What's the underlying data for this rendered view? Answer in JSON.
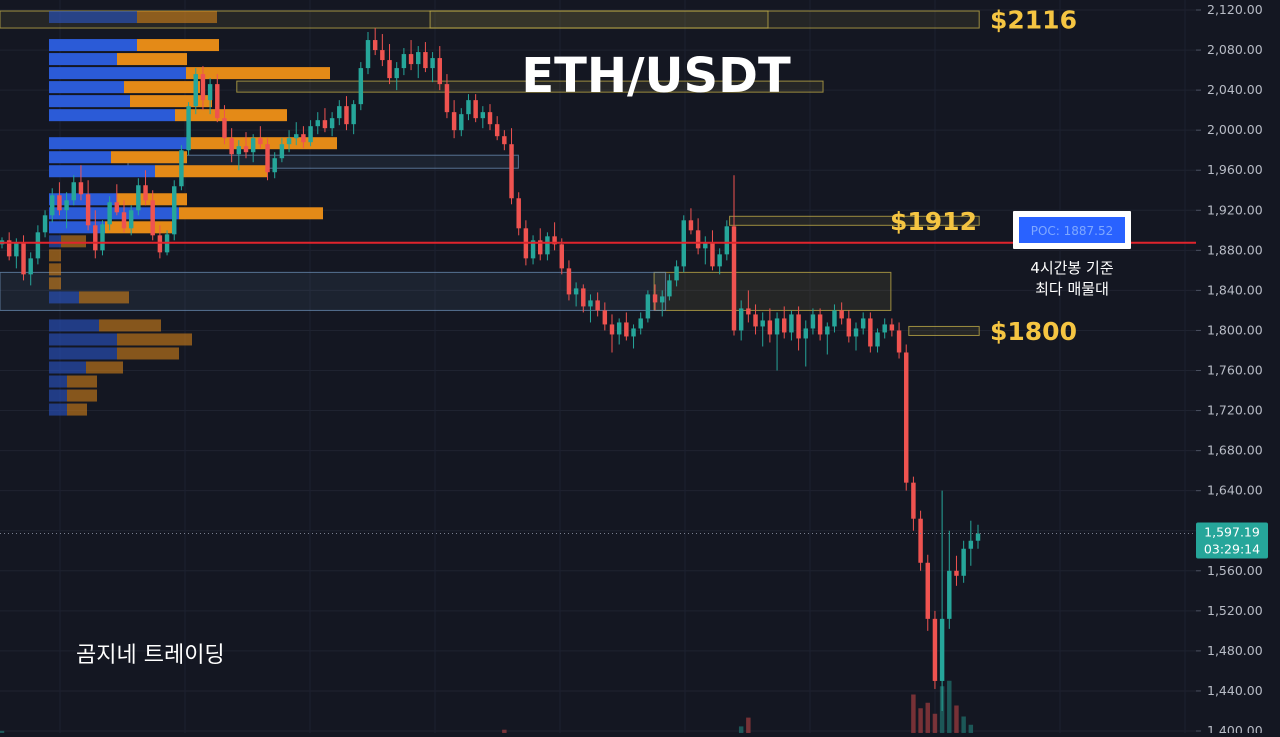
{
  "chart_data": {
    "type": "candlestick",
    "title": "ETH/USDT",
    "watermark": "곰지네 트레이딩",
    "price_axis": {
      "range": [
        1398,
        2130
      ],
      "ticks": [
        "2,120.00",
        "2,080.00",
        "2,040.00",
        "2,000.00",
        "1,960.00",
        "1,920.00",
        "1,880.00",
        "1,840.00",
        "1,800.00",
        "1,760.00",
        "1,720.00",
        "1,680.00",
        "1,640.00",
        "1,600.00",
        "1,560.00",
        "1,520.00",
        "1,480.00",
        "1,440.00",
        "1,400.00"
      ]
    },
    "current_price": {
      "price": "1,597.19",
      "countdown": "03:29:14",
      "value": 1597.19,
      "color": "#26a69a"
    },
    "poc": {
      "value": 1887.52,
      "label": "POC: 1887.52",
      "annotation_line1": "4시간봉 기준",
      "annotation_line2": "최다 매물대",
      "line_color": "#e0242c",
      "badge_color": "#2962ff"
    },
    "levels": [
      {
        "label": "$2116",
        "low": 2102,
        "high": 2119,
        "color": "#f5c542"
      },
      {
        "label": "$1912",
        "low": 1905,
        "high": 1914,
        "color": "#f5c542"
      },
      {
        "label": "$1800",
        "low": 1795,
        "high": 1804,
        "color": "#f5c542"
      }
    ],
    "zones": [
      {
        "low": 2102,
        "high": 2119,
        "x_from_pct": 0.0,
        "x_to_pct": 0.765,
        "color": "#c8b34a"
      },
      {
        "low": 2102,
        "high": 2119,
        "x_from_pct": 0.336,
        "x_to_pct": 0.6,
        "color": "#c8b34a"
      },
      {
        "low": 2038,
        "high": 2049,
        "x_from_pct": 0.185,
        "x_to_pct": 0.643,
        "color": "#c8b34a"
      },
      {
        "low": 1962,
        "high": 1975,
        "x_from_pct": 0.1,
        "x_to_pct": 0.405,
        "color": "#6b8fb5"
      },
      {
        "low": 1905,
        "high": 1914,
        "x_from_pct": 0.57,
        "x_to_pct": 0.765,
        "color": "#c8b34a"
      },
      {
        "low": 1820,
        "high": 1858,
        "x_from_pct": 0.511,
        "x_to_pct": 0.696,
        "color": "#c8b34a"
      },
      {
        "low": 1820,
        "high": 1858,
        "x_from_pct": 0.0,
        "x_to_pct": 0.52,
        "color": "#6b8fb5"
      },
      {
        "low": 1795,
        "high": 1804,
        "x_from_pct": 0.71,
        "x_to_pct": 0.765,
        "color": "#c8b34a"
      }
    ],
    "volume_profile": {
      "bin_size": 14,
      "rows": [
        {
          "top": 2120,
          "buy": 88,
          "sell": 80,
          "dim": true
        },
        {
          "top": 2092,
          "buy": 88,
          "sell": 82
        },
        {
          "top": 2078,
          "buy": 68,
          "sell": 70
        },
        {
          "top": 2064,
          "buy": 137,
          "sell": 144
        },
        {
          "top": 2050,
          "buy": 75,
          "sell": 76
        },
        {
          "top": 2036,
          "buy": 81,
          "sell": 82
        },
        {
          "top": 2022,
          "buy": 126,
          "sell": 112
        },
        {
          "top": 1994,
          "buy": 140,
          "sell": 148
        },
        {
          "top": 1980,
          "buy": 62,
          "sell": 76
        },
        {
          "top": 1966,
          "buy": 106,
          "sell": 112
        },
        {
          "top": 1938,
          "buy": 68,
          "sell": 70
        },
        {
          "top": 1924,
          "buy": 130,
          "sell": 144
        },
        {
          "top": 1910,
          "buy": 56,
          "sell": 70
        },
        {
          "top": 1896,
          "buy": 12,
          "sell": 25,
          "dim": true
        },
        {
          "top": 1882,
          "buy": 0,
          "sell": 12,
          "dim": true
        },
        {
          "top": 1868,
          "buy": 0,
          "sell": 12,
          "dim": true
        },
        {
          "top": 1854,
          "buy": 0,
          "sell": 12,
          "dim": true
        },
        {
          "top": 1840,
          "buy": 30,
          "sell": 50,
          "dim": true
        },
        {
          "top": 1812,
          "buy": 50,
          "sell": 62,
          "dim": true
        },
        {
          "top": 1798,
          "buy": 68,
          "sell": 75,
          "dim": true
        },
        {
          "top": 1784,
          "buy": 68,
          "sell": 62,
          "dim": true
        },
        {
          "top": 1770,
          "buy": 37,
          "sell": 37,
          "dim": true
        },
        {
          "top": 1756,
          "buy": 18,
          "sell": 30,
          "dim": true
        },
        {
          "top": 1742,
          "buy": 18,
          "sell": 30,
          "dim": true
        },
        {
          "top": 1728,
          "buy": 18,
          "sell": 20,
          "dim": true
        }
      ]
    },
    "candles": [
      [
        1886,
        1893,
        1882,
        1890
      ],
      [
        1890,
        1898,
        1870,
        1874
      ],
      [
        1874,
        1892,
        1862,
        1888
      ],
      [
        1888,
        1895,
        1850,
        1856
      ],
      [
        1856,
        1878,
        1845,
        1872
      ],
      [
        1872,
        1905,
        1866,
        1898
      ],
      [
        1898,
        1920,
        1893,
        1915
      ],
      [
        1915,
        1942,
        1908,
        1935
      ],
      [
        1935,
        1948,
        1915,
        1920
      ],
      [
        1920,
        1938,
        1902,
        1930
      ],
      [
        1930,
        1955,
        1925,
        1948
      ],
      [
        1948,
        1965,
        1930,
        1936
      ],
      [
        1936,
        1950,
        1900,
        1905
      ],
      [
        1905,
        1920,
        1872,
        1880
      ],
      [
        1880,
        1910,
        1875,
        1906
      ],
      [
        1906,
        1934,
        1900,
        1928
      ],
      [
        1928,
        1946,
        1915,
        1918
      ],
      [
        1918,
        1930,
        1898,
        1902
      ],
      [
        1902,
        1925,
        1895,
        1920
      ],
      [
        1920,
        1952,
        1915,
        1945
      ],
      [
        1945,
        1960,
        1925,
        1930
      ],
      [
        1930,
        1940,
        1890,
        1895
      ],
      [
        1895,
        1905,
        1872,
        1878
      ],
      [
        1878,
        1900,
        1875,
        1896
      ],
      [
        1896,
        1950,
        1890,
        1944
      ],
      [
        1944,
        1985,
        1940,
        1980
      ],
      [
        1980,
        2028,
        1975,
        2024
      ],
      [
        2024,
        2062,
        2016,
        2056
      ],
      [
        2056,
        2064,
        2020,
        2030
      ],
      [
        2030,
        2052,
        2016,
        2046
      ],
      [
        2046,
        2056,
        2008,
        2012
      ],
      [
        2012,
        2025,
        1986,
        1992
      ],
      [
        1992,
        2002,
        1968,
        1976
      ],
      [
        1976,
        1990,
        1960,
        1984
      ],
      [
        1984,
        1998,
        1972,
        1978
      ],
      [
        1978,
        1996,
        1968,
        1992
      ],
      [
        1992,
        2004,
        1982,
        1986
      ],
      [
        1986,
        1992,
        1950,
        1958
      ],
      [
        1958,
        1978,
        1952,
        1972
      ],
      [
        1972,
        1992,
        1968,
        1986
      ],
      [
        1986,
        2000,
        1978,
        1992
      ],
      [
        1992,
        2008,
        1985,
        1996
      ],
      [
        1996,
        2004,
        1982,
        1988
      ],
      [
        1988,
        2010,
        1984,
        2004
      ],
      [
        2004,
        2018,
        1996,
        2010
      ],
      [
        2010,
        2022,
        1998,
        2002
      ],
      [
        2002,
        2018,
        1994,
        2012
      ],
      [
        2012,
        2030,
        2005,
        2024
      ],
      [
        2024,
        2034,
        2000,
        2006
      ],
      [
        2006,
        2030,
        1996,
        2026
      ],
      [
        2026,
        2068,
        2020,
        2062
      ],
      [
        2062,
        2098,
        2056,
        2090
      ],
      [
        2090,
        2102,
        2075,
        2080
      ],
      [
        2080,
        2096,
        2064,
        2070
      ],
      [
        2070,
        2086,
        2046,
        2052
      ],
      [
        2052,
        2068,
        2040,
        2062
      ],
      [
        2062,
        2082,
        2055,
        2076
      ],
      [
        2076,
        2090,
        2060,
        2066
      ],
      [
        2066,
        2084,
        2052,
        2078
      ],
      [
        2078,
        2088,
        2058,
        2062
      ],
      [
        2062,
        2078,
        2048,
        2072
      ],
      [
        2072,
        2084,
        2040,
        2046
      ],
      [
        2046,
        2056,
        2012,
        2018
      ],
      [
        2018,
        2030,
        1992,
        2000
      ],
      [
        2000,
        2022,
        1994,
        2016
      ],
      [
        2016,
        2036,
        2010,
        2030
      ],
      [
        2030,
        2036,
        2008,
        2012
      ],
      [
        2012,
        2024,
        2002,
        2018
      ],
      [
        2018,
        2026,
        2000,
        2006
      ],
      [
        2006,
        2014,
        1990,
        1994
      ],
      [
        1994,
        2000,
        1980,
        1986
      ],
      [
        1986,
        2002,
        1926,
        1932
      ],
      [
        1932,
        1938,
        1895,
        1902
      ],
      [
        1902,
        1910,
        1865,
        1872
      ],
      [
        1872,
        1895,
        1866,
        1890
      ],
      [
        1890,
        1902,
        1870,
        1876
      ],
      [
        1876,
        1898,
        1870,
        1894
      ],
      [
        1894,
        1908,
        1880,
        1886
      ],
      [
        1886,
        1892,
        1856,
        1862
      ],
      [
        1862,
        1870,
        1830,
        1836
      ],
      [
        1836,
        1848,
        1824,
        1842
      ],
      [
        1842,
        1846,
        1818,
        1824
      ],
      [
        1824,
        1836,
        1808,
        1830
      ],
      [
        1830,
        1838,
        1814,
        1820
      ],
      [
        1820,
        1828,
        1800,
        1806
      ],
      [
        1806,
        1816,
        1778,
        1796
      ],
      [
        1796,
        1812,
        1786,
        1808
      ],
      [
        1808,
        1818,
        1790,
        1794
      ],
      [
        1794,
        1806,
        1782,
        1802
      ],
      [
        1802,
        1818,
        1796,
        1812
      ],
      [
        1812,
        1840,
        1808,
        1836
      ],
      [
        1836,
        1846,
        1820,
        1828
      ],
      [
        1828,
        1840,
        1814,
        1834
      ],
      [
        1834,
        1856,
        1830,
        1850
      ],
      [
        1850,
        1870,
        1844,
        1864
      ],
      [
        1864,
        1915,
        1858,
        1910
      ],
      [
        1910,
        1922,
        1896,
        1900
      ],
      [
        1900,
        1912,
        1876,
        1882
      ],
      [
        1882,
        1894,
        1866,
        1888
      ],
      [
        1888,
        1900,
        1860,
        1864
      ],
      [
        1864,
        1882,
        1856,
        1876
      ],
      [
        1876,
        1910,
        1870,
        1904
      ],
      [
        1904,
        1955,
        1795,
        1800
      ],
      [
        1800,
        1830,
        1790,
        1822
      ],
      [
        1822,
        1840,
        1808,
        1816
      ],
      [
        1816,
        1826,
        1796,
        1804
      ],
      [
        1804,
        1818,
        1784,
        1810
      ],
      [
        1810,
        1822,
        1788,
        1796
      ],
      [
        1796,
        1818,
        1760,
        1812
      ],
      [
        1812,
        1824,
        1792,
        1798
      ],
      [
        1798,
        1820,
        1790,
        1816
      ],
      [
        1816,
        1824,
        1780,
        1792
      ],
      [
        1792,
        1810,
        1764,
        1802
      ],
      [
        1802,
        1822,
        1796,
        1816
      ],
      [
        1816,
        1822,
        1790,
        1796
      ],
      [
        1796,
        1808,
        1776,
        1804
      ],
      [
        1804,
        1826,
        1798,
        1820
      ],
      [
        1820,
        1828,
        1806,
        1812
      ],
      [
        1812,
        1820,
        1788,
        1794
      ],
      [
        1794,
        1808,
        1780,
        1802
      ],
      [
        1802,
        1818,
        1796,
        1812
      ],
      [
        1812,
        1818,
        1778,
        1784
      ],
      [
        1784,
        1802,
        1778,
        1798
      ],
      [
        1798,
        1812,
        1792,
        1806
      ],
      [
        1806,
        1812,
        1794,
        1800
      ],
      [
        1800,
        1808,
        1772,
        1778
      ],
      [
        1778,
        1786,
        1640,
        1648
      ],
      [
        1648,
        1654,
        1600,
        1612
      ],
      [
        1612,
        1620,
        1560,
        1568
      ],
      [
        1568,
        1576,
        1500,
        1512
      ],
      [
        1512,
        1520,
        1442,
        1450
      ],
      [
        1450,
        1640,
        1420,
        1512
      ],
      [
        1512,
        1600,
        1502,
        1560
      ],
      [
        1560,
        1575,
        1545,
        1555
      ],
      [
        1555,
        1590,
        1548,
        1582
      ],
      [
        1582,
        1610,
        1565,
        1590
      ],
      [
        1590,
        1606,
        1582,
        1597.19
      ]
    ],
    "volumes": [
      {
        "i": 0,
        "v": 0.04
      },
      {
        "i": 70,
        "v": 0.06
      },
      {
        "i": 104,
        "v": 0.28
      },
      {
        "i": 103,
        "v": 0.12
      },
      {
        "i": 127,
        "v": 0.7
      },
      {
        "i": 128,
        "v": 0.45
      },
      {
        "i": 129,
        "v": 0.55
      },
      {
        "i": 130,
        "v": 0.35
      },
      {
        "i": 131,
        "v": 0.85
      },
      {
        "i": 132,
        "v": 0.95
      },
      {
        "i": 133,
        "v": 0.5
      },
      {
        "i": 134,
        "v": 0.3
      },
      {
        "i": 135,
        "v": 0.15
      }
    ],
    "colors": {
      "background": "#141722",
      "up": "#26a69a",
      "down": "#ef5350",
      "buy_volume": "#2b5bd7",
      "sell_volume": "#e48a17",
      "level_label": "#f5c542"
    }
  }
}
